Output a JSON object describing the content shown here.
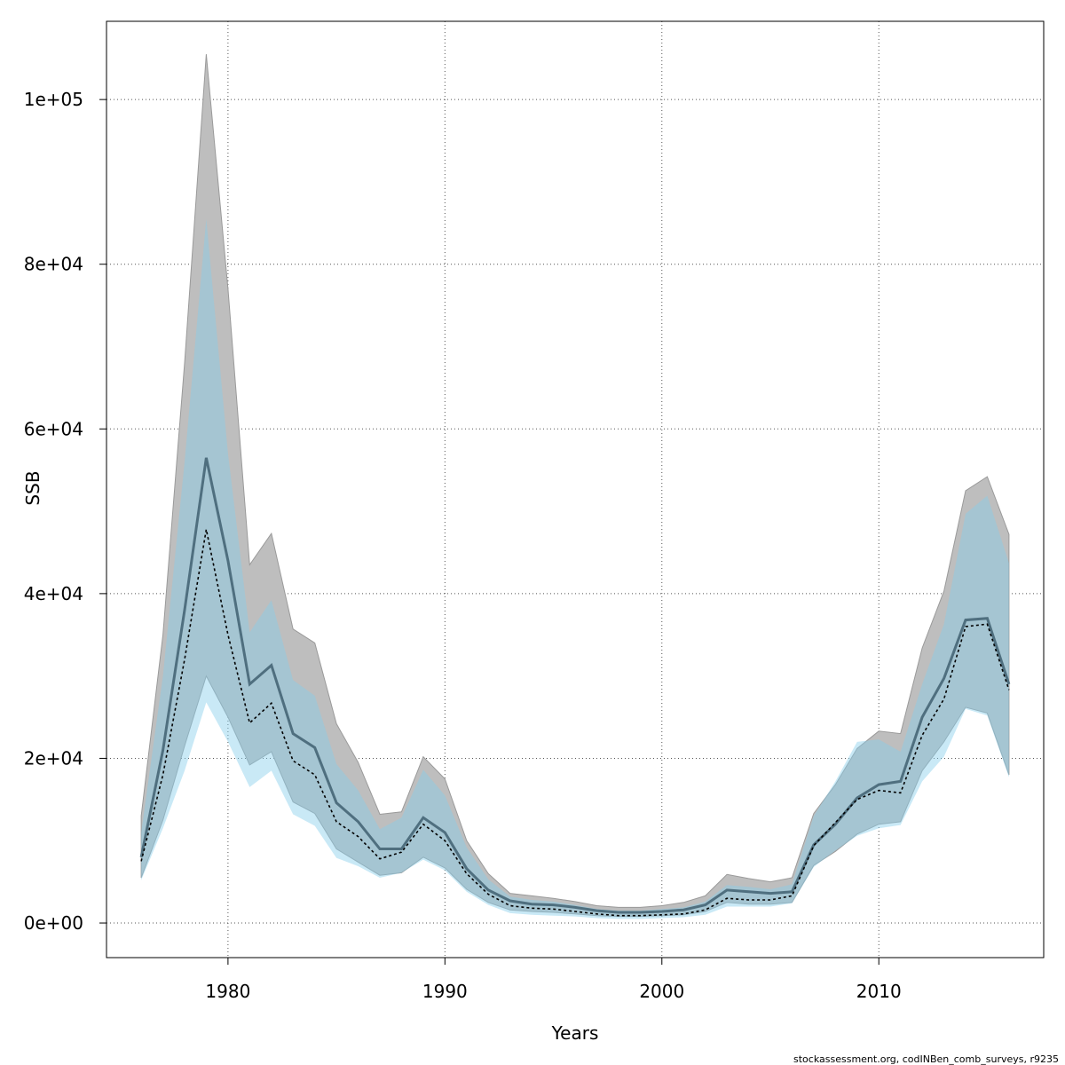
{
  "chart_data": {
    "type": "line",
    "xlabel": "Years",
    "ylabel": "SSB",
    "credit": "stockassessment.org, codINBen_comb_surveys, r9235",
    "xlim": [
      1974.4,
      2017.6
    ],
    "ylim": [
      -4200,
      109500
    ],
    "x_ticks": [
      {
        "value": 1980,
        "label": "1980"
      },
      {
        "value": 1990,
        "label": "1990"
      },
      {
        "value": 2000,
        "label": "2000"
      },
      {
        "value": 2010,
        "label": "2010"
      }
    ],
    "y_ticks": [
      {
        "value": 0,
        "label": "0e+00"
      },
      {
        "value": 20000,
        "label": "2e+04"
      },
      {
        "value": 40000,
        "label": "4e+04"
      },
      {
        "value": 60000,
        "label": "6e+04"
      },
      {
        "value": 80000,
        "label": "8e+04"
      },
      {
        "value": 100000,
        "label": "1e+05"
      }
    ],
    "grid": true,
    "colors": {
      "band_gray": "#bebebe",
      "band_blue": "#87ceeb",
      "line_main": "#4f6f7f",
      "line_dotted": "#000000",
      "grid": "#555555"
    },
    "x": [
      1976,
      1977,
      1978,
      1979,
      1980,
      1981,
      1982,
      1983,
      1984,
      1985,
      1986,
      1987,
      1988,
      1989,
      1990,
      1991,
      1992,
      1993,
      1994,
      1995,
      1996,
      1997,
      1998,
      1999,
      2000,
      2001,
      2002,
      2003,
      2004,
      2005,
      2006,
      2007,
      2008,
      2009,
      2010,
      2011,
      2012,
      2013,
      2014,
      2015,
      2016
    ],
    "series": [
      {
        "role": "gray-estimate",
        "values": [
          8000,
          21000,
          38000,
          56500,
          44000,
          29000,
          31300,
          23000,
          21300,
          14600,
          12300,
          9000,
          9000,
          12800,
          11000,
          6600,
          4000,
          2700,
          2300,
          2200,
          1900,
          1500,
          1300,
          1300,
          1400,
          1600,
          2200,
          4000,
          3800,
          3600,
          3800,
          9500,
          12000,
          15200,
          16800,
          17200,
          25000,
          29700,
          36800,
          37000,
          29000
        ],
        "lower": [
          5500,
          12500,
          21500,
          30000,
          25000,
          19200,
          20800,
          14700,
          13300,
          9000,
          7400,
          5800,
          6100,
          8000,
          6700,
          4100,
          2500,
          1600,
          1400,
          1300,
          1100,
          900,
          800,
          800,
          900,
          1000,
          1400,
          2500,
          2300,
          2300,
          2500,
          7000,
          8700,
          10800,
          12000,
          12300,
          18500,
          22000,
          26200,
          25500,
          18000
        ],
        "upper": [
          13000,
          35000,
          68000,
          105500,
          77000,
          43500,
          47300,
          35700,
          34000,
          24200,
          19500,
          13200,
          13500,
          20200,
          17500,
          10000,
          6000,
          3600,
          3300,
          3000,
          2600,
          2100,
          1900,
          1900,
          2100,
          2500,
          3300,
          5900,
          5400,
          5000,
          5500,
          13300,
          16800,
          21200,
          23300,
          23000,
          33400,
          40300,
          52500,
          54200,
          47200
        ]
      },
      {
        "role": "blue-estimate",
        "values": [
          7500,
          18000,
          32000,
          47800,
          35000,
          24300,
          26700,
          19700,
          18000,
          12300,
          10500,
          7800,
          8600,
          12000,
          10000,
          6000,
          3500,
          2100,
          1800,
          1700,
          1400,
          1100,
          900,
          900,
          1000,
          1100,
          1600,
          3000,
          2800,
          2800,
          3300,
          9400,
          12200,
          15000,
          16100,
          15800,
          22800,
          27200,
          36000,
          36300,
          28300
        ],
        "lower": [
          5200,
          11500,
          18500,
          26800,
          22000,
          16500,
          18500,
          13200,
          11800,
          7900,
          6900,
          5500,
          6100,
          7700,
          6400,
          3800,
          2200,
          1200,
          1000,
          900,
          800,
          600,
          500,
          500,
          600,
          700,
          1000,
          2000,
          2000,
          2000,
          2400,
          6800,
          8800,
          10600,
          11500,
          11900,
          17200,
          20200,
          26000,
          25200,
          17700
        ],
        "upper": [
          11000,
          30000,
          56000,
          85500,
          57000,
          35300,
          39200,
          29500,
          27600,
          19300,
          16100,
          11400,
          12800,
          18600,
          15500,
          9200,
          5300,
          3200,
          2800,
          2600,
          2200,
          1700,
          1500,
          1500,
          1700,
          1900,
          2600,
          4600,
          4400,
          4100,
          4700,
          13000,
          17200,
          22000,
          22300,
          20800,
          29000,
          36300,
          49700,
          51900,
          43700
        ]
      }
    ]
  }
}
